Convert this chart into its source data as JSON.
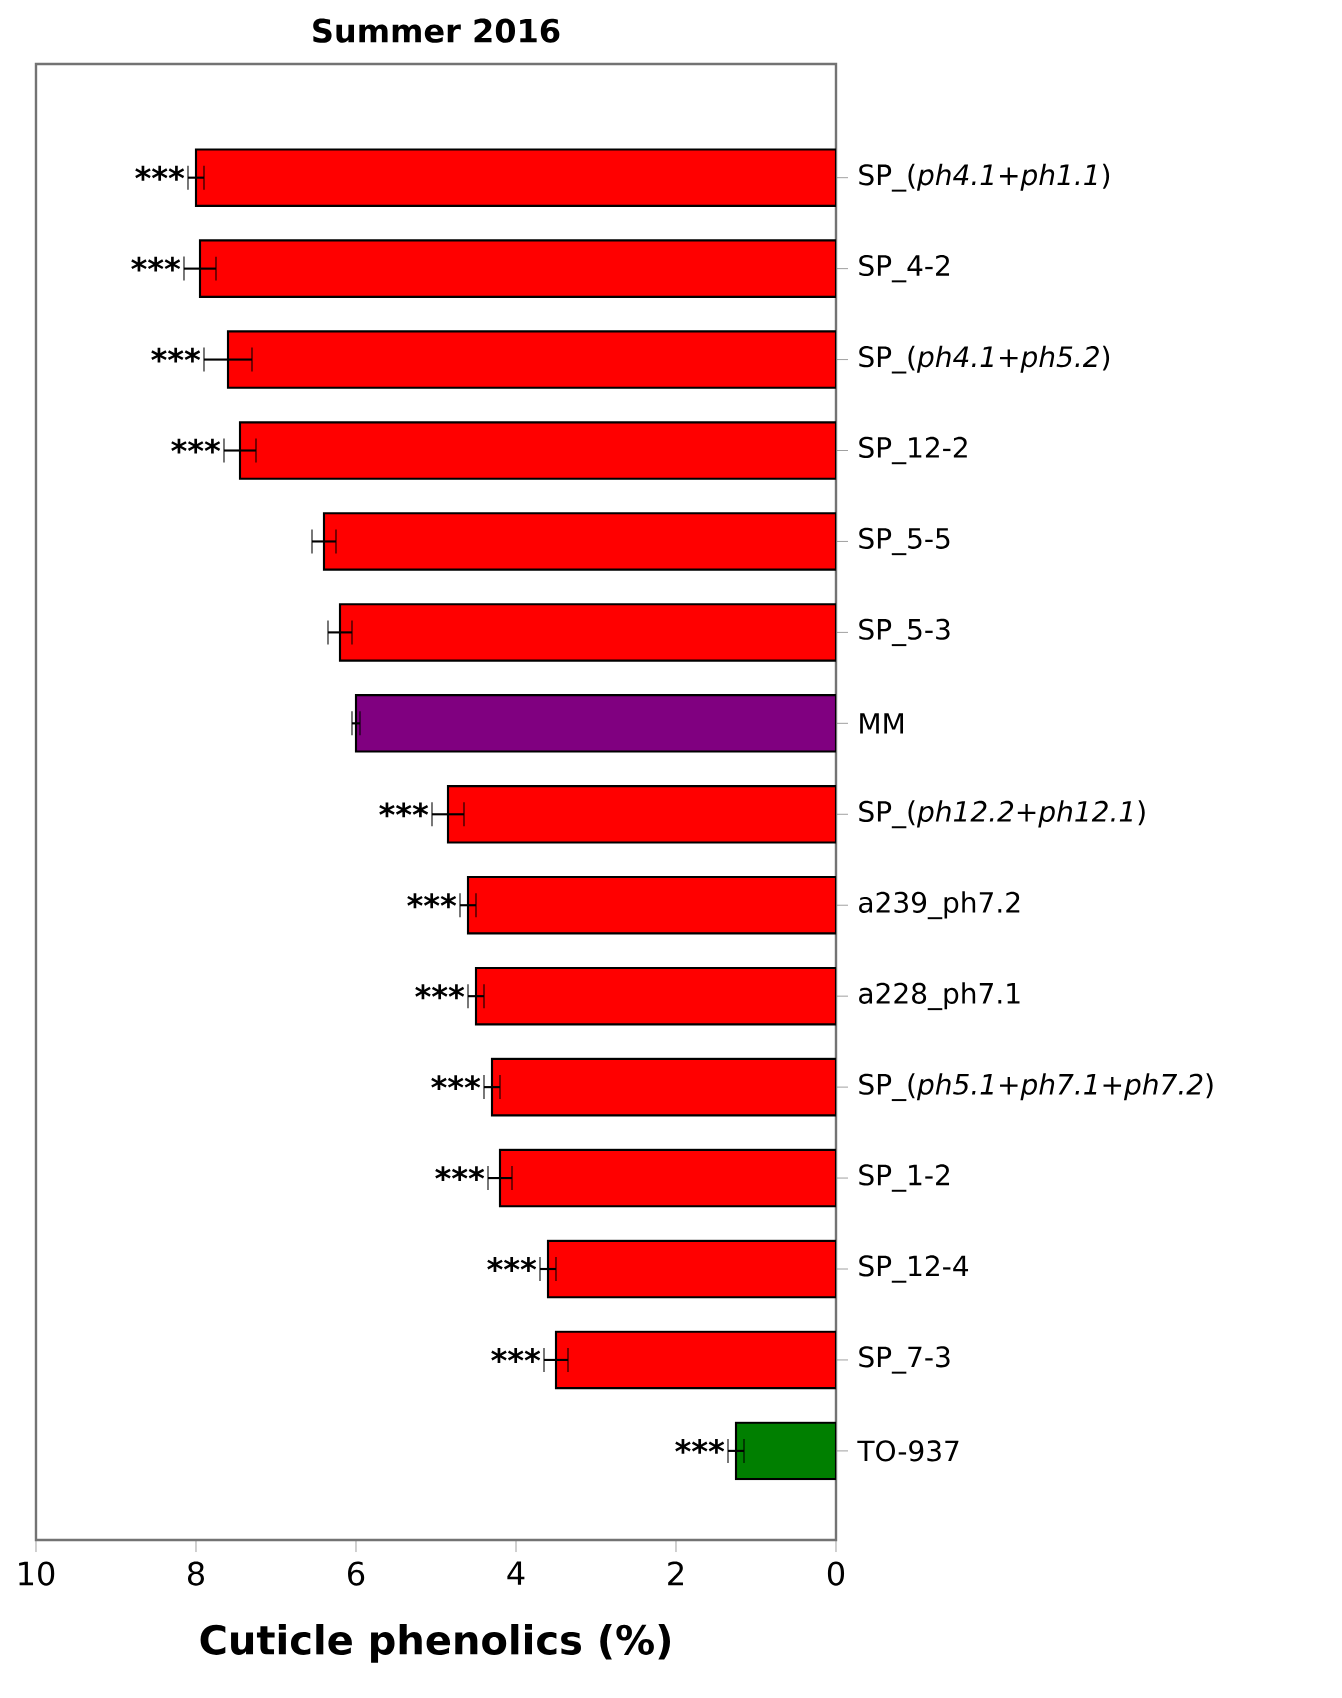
{
  "chart_data": {
    "type": "bar",
    "orientation": "horizontal",
    "title": "Summer 2016",
    "xlabel": "Cuticle phenolics (%)",
    "categories": [
      "SP_(*ph4.1*+*ph1.1*)",
      "SP_4-2",
      "SP_(*ph4.1*+*ph5.2*)",
      "SP_12-2",
      "SP_5-5",
      "SP_5-3",
      "MM",
      "SP_(*ph12.2*+*ph12.1*)",
      "a239_ph7.2",
      "a228_ph7.1",
      "SP_(*ph5.1*+*ph7.1*+*ph7.2*)",
      "SP_1-2",
      "SP_12-4",
      "SP_7-3",
      "TO-937"
    ],
    "values": [
      8.0,
      7.95,
      7.6,
      7.45,
      6.4,
      6.2,
      6.0,
      4.85,
      4.6,
      4.5,
      4.3,
      4.2,
      3.6,
      3.5,
      1.25
    ],
    "errors": [
      0.1,
      0.2,
      0.3,
      0.2,
      0.15,
      0.15,
      0.05,
      0.2,
      0.1,
      0.1,
      0.1,
      0.15,
      0.1,
      0.15,
      0.1
    ],
    "colors": [
      "#ff0000",
      "#ff0000",
      "#ff0000",
      "#ff0000",
      "#ff0000",
      "#ff0000",
      "#800080",
      "#ff0000",
      "#ff0000",
      "#ff0000",
      "#ff0000",
      "#ff0000",
      "#ff0000",
      "#ff0000",
      "#007f00"
    ],
    "xlim": [
      10,
      0
    ],
    "xticks": [
      10,
      8,
      6,
      4,
      2,
      0
    ],
    "grid": false,
    "annotations": [
      {
        "text": "***",
        "x": 8.1,
        "y": "SP_(*ph4.1*+*ph1.1*)"
      },
      {
        "text": "***",
        "x": 8.15,
        "y": "SP_4-2"
      },
      {
        "text": "***",
        "x": 7.9,
        "y": "SP_(*ph4.1*+*ph5.2*)"
      },
      {
        "text": "***",
        "x": 7.65,
        "y": "SP_12-2"
      },
      {
        "text": "***",
        "x": 5.05,
        "y": "SP_(*ph12.2*+*ph12.1*)"
      },
      {
        "text": "***",
        "x": 4.7,
        "y": "a239_ph7.2"
      },
      {
        "text": "***",
        "x": 4.6,
        "y": "a228_ph7.1"
      },
      {
        "text": "***",
        "x": 4.4,
        "y": "SP_(*ph5.1*+*ph7.1*+*ph7.2*)"
      },
      {
        "text": "***",
        "x": 4.35,
        "y": "SP_1-2"
      },
      {
        "text": "***",
        "x": 3.7,
        "y": "SP_12-4"
      },
      {
        "text": "***",
        "x": 3.65,
        "y": "SP_7-3"
      },
      {
        "text": "***",
        "x": 1.35,
        "y": "TO-937"
      }
    ]
  }
}
